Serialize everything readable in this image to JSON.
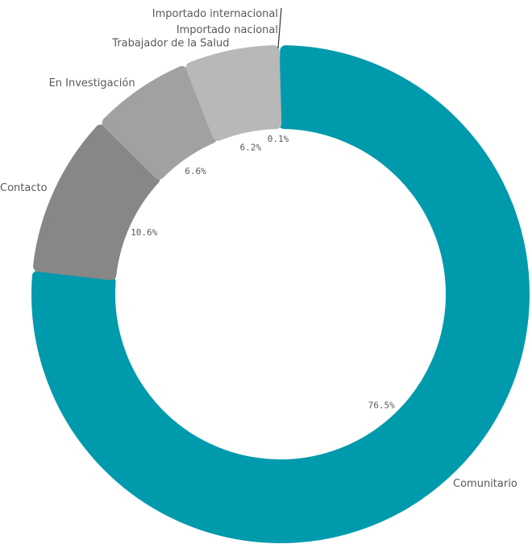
{
  "chart_data": {
    "type": "pie",
    "variant": "donut",
    "categories": [
      "Comunitario",
      "Contacto",
      "En Investigación",
      "Trabajador de la Salud",
      "Importado nacional",
      "Importado internacional"
    ],
    "values": [
      76.5,
      10.6,
      6.6,
      6.2,
      0.1,
      0.0
    ],
    "value_labels": [
      "76.5%",
      "10.6%",
      "6.6%",
      "6.2%",
      "0.1%",
      null
    ],
    "colors": [
      "#009aad",
      "#878787",
      "#a1a1a1",
      "#b8b8b8",
      "#c4c4c4",
      "#cfcfcf"
    ],
    "legend": "none",
    "start": "top",
    "direction": "clockwise"
  }
}
